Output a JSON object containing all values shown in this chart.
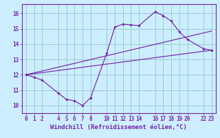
{
  "xlabel": "Windchill (Refroidissement éolien,°C)",
  "background_color": "#cceeff",
  "grid_color": "#99cccc",
  "line_color": "#7722aa",
  "x_ticks": [
    0,
    1,
    2,
    4,
    5,
    6,
    7,
    8,
    10,
    11,
    12,
    13,
    14,
    16,
    17,
    18,
    19,
    20,
    22,
    23
  ],
  "y_ticks": [
    10,
    11,
    12,
    13,
    14,
    15,
    16
  ],
  "ylim": [
    9.5,
    16.6
  ],
  "xlim": [
    -0.5,
    23.5
  ],
  "curve_x": [
    0,
    1,
    2,
    4,
    5,
    6,
    7,
    8,
    10,
    11,
    12,
    13,
    14,
    16,
    17,
    18,
    19,
    20,
    22,
    23
  ],
  "curve_y": [
    12.0,
    11.85,
    11.65,
    10.8,
    10.4,
    10.3,
    10.0,
    10.5,
    13.4,
    15.1,
    15.3,
    15.25,
    15.2,
    16.1,
    15.85,
    15.5,
    14.8,
    14.3,
    13.7,
    13.6
  ],
  "line1_x": [
    0,
    23
  ],
  "line1_y": [
    12.0,
    13.6
  ],
  "line2_x": [
    0,
    23
  ],
  "line2_y": [
    12.0,
    14.85
  ],
  "tick_fontsize": 5.5,
  "xlabel_fontsize": 6.5
}
